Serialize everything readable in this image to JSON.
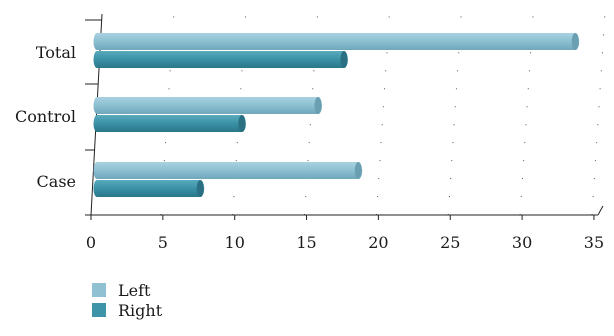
{
  "chart_data": {
    "type": "bar",
    "orientation": "horizontal",
    "style": "3d-cylinder",
    "categories": [
      "Total",
      "Control",
      "Case"
    ],
    "series": [
      {
        "name": "Left",
        "values": [
          33.7,
          15.8,
          18.6
        ],
        "color": "#8fc1d3"
      },
      {
        "name": "Right",
        "values": [
          17.6,
          10.5,
          7.6
        ],
        "color": "#3d93a8"
      }
    ],
    "xlim": [
      0,
      35
    ],
    "xticks": [
      0,
      5,
      10,
      15,
      20,
      25,
      30,
      35
    ],
    "grid": "vertical-dotted",
    "legend_position": "bottom-left"
  }
}
